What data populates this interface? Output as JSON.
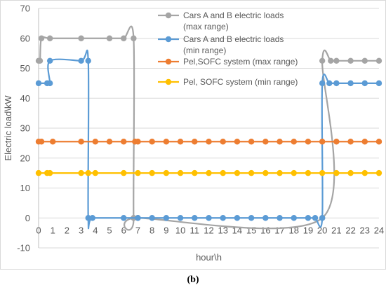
{
  "caption": "(b)",
  "chart_data": {
    "type": "line",
    "xlabel": "hour\\h",
    "ylabel": "Electric load\\kW",
    "xlim": [
      0,
      24
    ],
    "ylim": [
      -10,
      70
    ],
    "xticks": [
      0,
      1,
      2,
      3,
      4,
      5,
      6,
      7,
      8,
      9,
      10,
      11,
      12,
      13,
      14,
      15,
      16,
      17,
      18,
      19,
      20,
      21,
      22,
      23,
      24
    ],
    "yticks": [
      -10,
      0,
      10,
      20,
      30,
      40,
      50,
      60,
      70
    ],
    "grid": "horizontal",
    "legend_position": "top-right inside plot",
    "series": [
      {
        "name": "Cars A and B electric loads (max range)",
        "legend_lines": [
          "Cars A and B electric loads",
          "(max range)"
        ],
        "color": "#A5A5A5",
        "points": [
          [
            0,
            52.5
          ],
          [
            0.1,
            52.5
          ],
          [
            0.2,
            60
          ],
          [
            0.8,
            60
          ],
          [
            3,
            60
          ],
          [
            5,
            60
          ],
          [
            6,
            60
          ],
          [
            6.7,
            60
          ],
          [
            6.7,
            0
          ],
          [
            7,
            0
          ],
          [
            20,
            0
          ],
          [
            20,
            52.5
          ],
          [
            20.6,
            52.5
          ],
          [
            21,
            52.5
          ],
          [
            22,
            52.5
          ],
          [
            23,
            52.5
          ],
          [
            24,
            52.5
          ]
        ]
      },
      {
        "name": "Cars A and B electric loads (min range)",
        "legend_lines": [
          "Cars A and B electric loads",
          "(min range)"
        ],
        "color": "#5B9BD5",
        "points": [
          [
            0,
            45
          ],
          [
            0.6,
            45
          ],
          [
            0.8,
            45
          ],
          [
            0.8,
            52.5
          ],
          [
            3,
            52.5
          ],
          [
            3.5,
            52.5
          ],
          [
            3.5,
            0
          ],
          [
            3.8,
            0
          ],
          [
            6,
            0
          ],
          [
            7,
            0
          ],
          [
            8,
            0
          ],
          [
            9,
            0
          ],
          [
            10,
            0
          ],
          [
            11,
            0
          ],
          [
            12,
            0
          ],
          [
            13,
            0
          ],
          [
            14,
            0
          ],
          [
            15,
            0
          ],
          [
            16,
            0
          ],
          [
            17,
            0
          ],
          [
            18,
            0
          ],
          [
            19,
            0
          ],
          [
            19.5,
            0
          ],
          [
            20,
            0
          ],
          [
            20,
            45
          ],
          [
            20.5,
            45
          ],
          [
            21,
            45
          ],
          [
            22,
            45
          ],
          [
            23,
            45
          ],
          [
            24,
            45
          ]
        ]
      },
      {
        "name": "Pel,SOFC system (max range)",
        "legend_lines": [
          "Pel,SOFC system (max range)"
        ],
        "color": "#ED7D31",
        "points": [
          [
            0,
            25.5
          ],
          [
            0.2,
            25.5
          ],
          [
            1,
            25.5
          ],
          [
            3,
            25.5
          ],
          [
            4,
            25.5
          ],
          [
            5,
            25.5
          ],
          [
            6,
            25.5
          ],
          [
            6.8,
            25.5
          ],
          [
            7,
            25.5
          ],
          [
            8,
            25.5
          ],
          [
            9,
            25.5
          ],
          [
            10,
            25.5
          ],
          [
            11,
            25.5
          ],
          [
            12,
            25.5
          ],
          [
            13,
            25.5
          ],
          [
            14,
            25.5
          ],
          [
            15,
            25.5
          ],
          [
            16,
            25.5
          ],
          [
            17,
            25.5
          ],
          [
            18,
            25.5
          ],
          [
            19,
            25.5
          ],
          [
            20,
            25.5
          ],
          [
            21,
            25.5
          ],
          [
            22,
            25.5
          ],
          [
            23,
            25.5
          ],
          [
            24,
            25.5
          ]
        ]
      },
      {
        "name": "Pel, SOFC system (min range)",
        "legend_lines": [
          "Pel, SOFC system (min range)"
        ],
        "color": "#FFC000",
        "points": [
          [
            0,
            15
          ],
          [
            0.6,
            15
          ],
          [
            0.8,
            15
          ],
          [
            3,
            15
          ],
          [
            3.5,
            15
          ],
          [
            4,
            15
          ],
          [
            6,
            15
          ],
          [
            7,
            15
          ],
          [
            8,
            15
          ],
          [
            9,
            15
          ],
          [
            10,
            15
          ],
          [
            11,
            15
          ],
          [
            12,
            15
          ],
          [
            13,
            15
          ],
          [
            14,
            15
          ],
          [
            15,
            15
          ],
          [
            16,
            15
          ],
          [
            17,
            15
          ],
          [
            18,
            15
          ],
          [
            19,
            15
          ],
          [
            20,
            15
          ],
          [
            21,
            15
          ],
          [
            22,
            15
          ],
          [
            23,
            15
          ],
          [
            24,
            15
          ]
        ]
      }
    ]
  }
}
